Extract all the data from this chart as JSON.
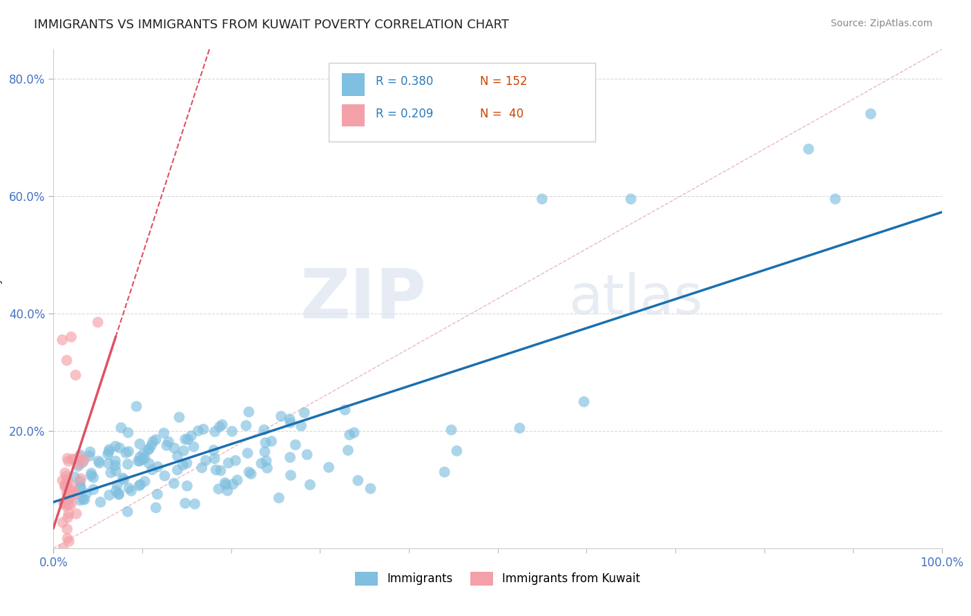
{
  "title": "IMMIGRANTS VS IMMIGRANTS FROM KUWAIT POVERTY CORRELATION CHART",
  "source": "Source: ZipAtlas.com",
  "ylabel": "Poverty",
  "xlim": [
    0,
    1.0
  ],
  "ylim": [
    0,
    0.85
  ],
  "blue_color": "#7fbfdf",
  "pink_color": "#f4a0a8",
  "blue_line_color": "#1a6faf",
  "pink_line_color": "#e05060",
  "legend_r_blue": "R = 0.380",
  "legend_n_blue": "N = 152",
  "legend_r_pink": "R = 0.209",
  "legend_n_pink": "N =  40",
  "legend_label_blue": "Immigrants",
  "legend_label_pink": "Immigrants from Kuwait",
  "watermark_zip": "ZIP",
  "watermark_atlas": "atlas"
}
